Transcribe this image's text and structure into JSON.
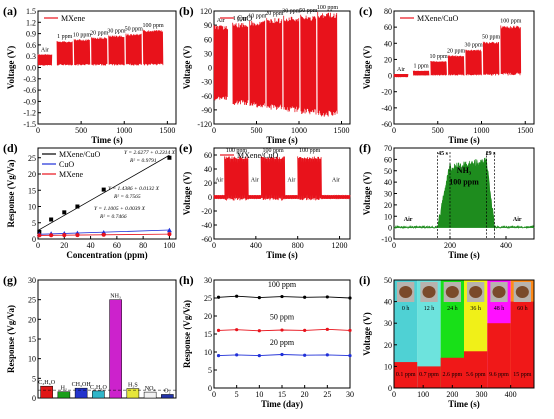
{
  "chart_data": [
    {
      "panel": "(a)",
      "type": "line",
      "xlabel": "Time (s)",
      "ylabel": "Voltage (V)",
      "xlim": [
        0,
        1600
      ],
      "ylim": [
        -1.5,
        1.5
      ],
      "xticks": [
        0,
        500,
        1000,
        1500
      ],
      "yticks": [
        -1.5,
        -1.2,
        -0.9,
        -0.6,
        -0.3,
        0.0,
        0.3,
        0.6,
        0.9,
        1.2,
        1.5
      ],
      "series": [
        {
          "name": "MXene",
          "color": "#e8121b"
        }
      ],
      "segments": [
        {
          "label": "Air",
          "x_start": 0,
          "x_end": 160,
          "ymin": 0.05,
          "ymax": 0.35
        },
        {
          "label": "1 ppm",
          "x_start": 220,
          "x_end": 400,
          "ymin": 0.05,
          "ymax": 0.7
        },
        {
          "label": "10 ppm",
          "x_start": 420,
          "x_end": 600,
          "ymin": 0.05,
          "ymax": 0.75
        },
        {
          "label": "20 ppm",
          "x_start": 620,
          "x_end": 800,
          "ymin": 0.05,
          "ymax": 0.8
        },
        {
          "label": "30 ppm",
          "x_start": 820,
          "x_end": 1000,
          "ymin": 0.05,
          "ymax": 0.85
        },
        {
          "label": "50 ppm",
          "x_start": 1020,
          "x_end": 1200,
          "ymin": 0.05,
          "ymax": 0.9
        },
        {
          "label": "100 ppm",
          "x_start": 1220,
          "x_end": 1450,
          "ymin": 0.05,
          "ymax": 1.0
        }
      ]
    },
    {
      "panel": "(b)",
      "type": "line",
      "xlabel": "Time (s)",
      "ylabel": "Voltage (V)",
      "xlim": [
        0,
        1600
      ],
      "ylim": [
        -120,
        120
      ],
      "xticks": [
        0,
        500,
        1000,
        1500
      ],
      "yticks": [
        -120,
        -90,
        -60,
        -30,
        0,
        30,
        60,
        90,
        120
      ],
      "series": [
        {
          "name": "CuO",
          "color": "#e8121b"
        }
      ],
      "segments": [
        {
          "label": "Air",
          "x_start": 0,
          "x_end": 160,
          "ymin": -70,
          "ymax": 90
        },
        {
          "label": "1 ppm",
          "x_start": 220,
          "x_end": 400,
          "ymin": -80,
          "ymax": 95
        },
        {
          "label": "10 ppm",
          "x_start": 420,
          "x_end": 600,
          "ymin": -85,
          "ymax": 100
        },
        {
          "label": "20 ppm",
          "x_start": 620,
          "x_end": 800,
          "ymin": -90,
          "ymax": 105
        },
        {
          "label": "30 ppm",
          "x_start": 820,
          "x_end": 1000,
          "ymin": -95,
          "ymax": 110
        },
        {
          "label": "50 ppm",
          "x_start": 1020,
          "x_end": 1200,
          "ymin": -100,
          "ymax": 112
        },
        {
          "label": "100 ppm",
          "x_start": 1220,
          "x_end": 1450,
          "ymin": -105,
          "ymax": 118
        }
      ]
    },
    {
      "panel": "(c)",
      "type": "line",
      "xlabel": "Time (s)",
      "ylabel": "Voltage (V)",
      "xlim": [
        0,
        1600
      ],
      "ylim": [
        -60,
        80
      ],
      "xticks": [
        0,
        500,
        1000,
        1500
      ],
      "yticks": [
        -60,
        -40,
        -20,
        0,
        20,
        40,
        60,
        80
      ],
      "series": [
        {
          "name": "MXene/CuO",
          "color": "#e8121b"
        }
      ],
      "segments": [
        {
          "label": "Air",
          "x_start": 0,
          "x_end": 160,
          "ymin": -2,
          "ymax": 2
        },
        {
          "label": "1 ppm",
          "x_start": 220,
          "x_end": 400,
          "ymin": 0,
          "ymax": 6
        },
        {
          "label": "10 ppm",
          "x_start": 420,
          "x_end": 600,
          "ymin": 0,
          "ymax": 18
        },
        {
          "label": "20 ppm",
          "x_start": 620,
          "x_end": 800,
          "ymin": 0,
          "ymax": 25
        },
        {
          "label": "30 ppm",
          "x_start": 820,
          "x_end": 1000,
          "ymin": 0,
          "ymax": 32
        },
        {
          "label": "50 ppm",
          "x_start": 1020,
          "x_end": 1200,
          "ymin": 0,
          "ymax": 42
        },
        {
          "label": "100 ppm",
          "x_start": 1220,
          "x_end": 1450,
          "ymin": 0,
          "ymax": 62
        }
      ]
    },
    {
      "panel": "(d)",
      "type": "scatter",
      "xlabel": "Concentration (ppm)",
      "ylabel": "Response (Vg/Va)",
      "xlim": [
        0,
        105
      ],
      "ylim": [
        0,
        28
      ],
      "xticks": [
        0,
        20,
        40,
        60,
        80,
        100
      ],
      "yticks": [
        0,
        5,
        10,
        15,
        20,
        25
      ],
      "series": [
        {
          "name": "MXene/CuO",
          "color": "#000000",
          "marker": "square",
          "x": [
            1,
            10,
            20,
            30,
            50,
            100
          ],
          "y": [
            2.2,
            6,
            8.2,
            10,
            15.2,
            25
          ],
          "fit": {
            "eq": "Y = 2.6277 + 0.2314 X",
            "r2": "R² = 0.9791",
            "intercept": 2.6277,
            "slope": 0.2314
          }
        },
        {
          "name": "CuO",
          "color": "#1f2fd8",
          "marker": "triangle",
          "x": [
            1,
            10,
            20,
            30,
            50,
            100
          ],
          "y": [
            1.5,
            1.6,
            1.7,
            1.8,
            2.0,
            2.7
          ],
          "fit": {
            "eq": "Y = 1.4386 + 0.0132 X",
            "r2": "R² = 0.7565",
            "intercept": 1.4386,
            "slope": 0.0132
          }
        },
        {
          "name": "MXene",
          "color": "#e8121b",
          "marker": "circle",
          "x": [
            1,
            10,
            20,
            30,
            50,
            100
          ],
          "y": [
            1.1,
            1.15,
            1.2,
            1.2,
            1.3,
            1.5
          ],
          "fit": {
            "eq": "Y = 1.1005 + 0.0039 X",
            "r2": "R² = 0.7466",
            "intercept": 1.1005,
            "slope": 0.0039
          }
        }
      ]
    },
    {
      "panel": "(e)",
      "type": "line",
      "xlabel": "Time (s)",
      "ylabel": "Voltage (V)",
      "xlim": [
        0,
        1300
      ],
      "ylim": [
        -60,
        70
      ],
      "xticks": [
        0,
        400,
        800,
        1200
      ],
      "yticks": [
        -60,
        -40,
        -20,
        0,
        20,
        40,
        60
      ],
      "series": [
        {
          "name": "MXene/CuO",
          "color": "#e8121b"
        }
      ],
      "labels": [
        "Air",
        "100 ppm",
        "Air",
        "100 ppm",
        "Air",
        "100 ppm",
        "Air"
      ],
      "pulses": [
        {
          "x_start": 100,
          "x_end": 330,
          "ymin": -5,
          "ymax": 58
        },
        {
          "x_start": 450,
          "x_end": 680,
          "ymin": -5,
          "ymax": 58
        },
        {
          "x_start": 800,
          "x_end": 1030,
          "ymin": -5,
          "ymax": 58
        }
      ],
      "baseline": [
        -3,
        3
      ]
    },
    {
      "panel": "(f)",
      "type": "area",
      "xlabel": "Time (s)",
      "ylabel": "Voltage (V)",
      "xlim": [
        0,
        500
      ],
      "ylim": [
        -10,
        70
      ],
      "xticks": [
        0,
        200,
        400
      ],
      "yticks": [
        -10,
        0,
        10,
        20,
        30,
        40,
        50,
        60,
        70
      ],
      "series": [
        {
          "name": "NH3 100 ppm",
          "color": "#1e8c1e"
        }
      ],
      "annotations": [
        "Air",
        "Air",
        "45 s",
        "29 s",
        "NH₃",
        "100 ppm"
      ],
      "on": 155,
      "rise": 45,
      "off": 330,
      "fall": 29,
      "peak": 58
    },
    {
      "panel": "(g)",
      "type": "bar",
      "xlabel": "",
      "ylabel": "Response (Vg/Va)",
      "ylim": [
        0,
        30
      ],
      "yticks": [
        0,
        5,
        10,
        15,
        20,
        25,
        30
      ],
      "categories": [
        "C₃H₆O",
        "H₂",
        "CH₃OH",
        "C₂H₆O",
        "NH₃",
        "H₂S",
        "NO₂",
        "O₂"
      ],
      "values": [
        3.0,
        1.6,
        2.5,
        1.8,
        25,
        2.4,
        1.5,
        0.9
      ],
      "colors": [
        "#e01717",
        "#1a9e1a",
        "#2233cc",
        "#2fb6c9",
        "#cc22cc",
        "#e6e63a",
        "#f2f2f2",
        "#2233aa"
      ]
    },
    {
      "panel": "(h)",
      "type": "line",
      "xlabel": "Time (day)",
      "ylabel": "Response (Vg/Va)",
      "xlim": [
        0,
        30
      ],
      "ylim": [
        0,
        30
      ],
      "xticks": [
        0,
        5,
        10,
        15,
        20,
        25,
        30
      ],
      "yticks": [
        0,
        5,
        10,
        15,
        20,
        25,
        30
      ],
      "series": [
        {
          "name": "100 ppm",
          "color": "#000000",
          "x": [
            1,
            5,
            10,
            15,
            20,
            25,
            30
          ],
          "y": [
            25.2,
            25.5,
            25.1,
            25.4,
            25.2,
            25.3,
            25.0
          ]
        },
        {
          "name": "50 ppm",
          "color": "#e8121b",
          "x": [
            1,
            5,
            10,
            15,
            20,
            25,
            30
          ],
          "y": [
            16.0,
            16.2,
            15.9,
            16.1,
            16.0,
            16.3,
            16.0
          ]
        },
        {
          "name": "20 ppm",
          "color": "#1f2fd8",
          "x": [
            1,
            5,
            10,
            15,
            20,
            25,
            30
          ],
          "y": [
            9.0,
            9.2,
            9.0,
            9.3,
            9.1,
            9.2,
            9.0
          ]
        }
      ]
    },
    {
      "panel": "(i)",
      "type": "bar",
      "xlabel": "Time (s)",
      "ylabel": "Voltage (V)",
      "xlim": [
        0,
        480
      ],
      "ylim": [
        0,
        50
      ],
      "xticks": [
        0,
        100,
        200,
        300,
        400
      ],
      "yticks": [
        0,
        10,
        20,
        30,
        40,
        50
      ],
      "times": [
        "0 h",
        "12 h",
        "24 h",
        "36 h",
        "48 h",
        "60 h"
      ],
      "concs": [
        "0.1 ppm",
        "0.7 ppm",
        "2.6 ppm",
        "5.6 ppm",
        "9.6 ppm",
        "15 ppm"
      ],
      "values": [
        12,
        10,
        14,
        17,
        30,
        40
      ],
      "bg_colors": [
        "#4fd1d4",
        "#6de3dd",
        "#18e018",
        "#f0f018",
        "#ff10ff",
        "#ff8a18"
      ]
    }
  ]
}
